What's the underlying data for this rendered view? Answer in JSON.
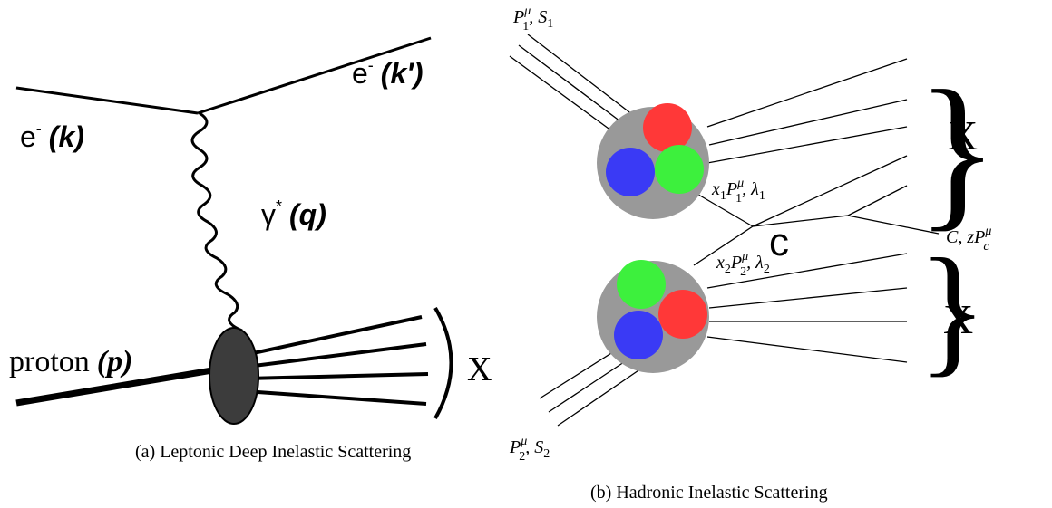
{
  "panel_a": {
    "caption": "(a) Leptonic Deep Inelastic Scattering",
    "incoming_electron": {
      "particle": "e",
      "charge": "-",
      "momentum": "(k)"
    },
    "outgoing_electron": {
      "particle": "e",
      "charge": "-",
      "momentum": "(k′)"
    },
    "photon": {
      "particle": "γ",
      "mark": "*",
      "momentum": "(q)"
    },
    "proton": {
      "particle": "proton",
      "momentum": "(p)"
    },
    "final_state": "X"
  },
  "panel_b": {
    "caption": "(b) Hadronic Inelastic Scattering",
    "beam_1": {
      "base": "P",
      "sup": "μ",
      "sub": "1",
      "rest": ", S",
      "rest_sub": "1"
    },
    "beam_2": {
      "base": "P",
      "sup": "μ",
      "sub": "2",
      "rest": ", S",
      "rest_sub": "2"
    },
    "parton_1": {
      "pre": "x",
      "pre_sub": "1",
      "base": "P",
      "sup": "μ",
      "sub": "1",
      "rest": ", λ",
      "rest_sub": "1"
    },
    "parton_2": {
      "pre": "x",
      "pre_sub": "2",
      "base": "P",
      "sup": "μ",
      "sub": "2",
      "rest": ", λ",
      "rest_sub": "2"
    },
    "quark": "c",
    "hadron": {
      "pre": "C, z",
      "base": "P",
      "sup": "μ",
      "sub": "c"
    },
    "final_state_top": "X",
    "final_state_bottom": "X"
  }
}
